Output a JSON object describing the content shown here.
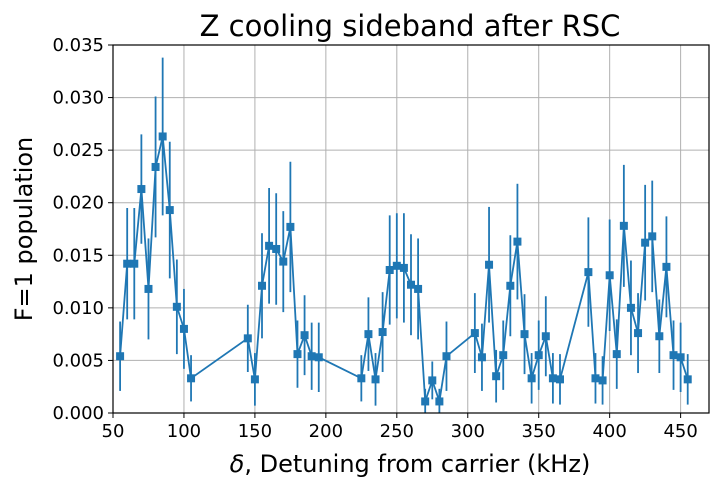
{
  "chart_data": {
    "type": "line",
    "title": "Z cooling sideband after RSC",
    "xlabel_symbol": "δ",
    "xlabel_text": ", Detuning from carrier (kHz)",
    "ylabel": "F=1 population",
    "xlim": [
      50,
      470
    ],
    "ylim": [
      0,
      0.035
    ],
    "xticks": [
      50,
      100,
      150,
      200,
      250,
      300,
      350,
      400,
      450
    ],
    "yticks": [
      0.0,
      0.005,
      0.01,
      0.015,
      0.02,
      0.025,
      0.03,
      0.035
    ],
    "ytick_labels": [
      "0.000",
      "0.005",
      "0.010",
      "0.015",
      "0.020",
      "0.025",
      "0.030",
      "0.035"
    ],
    "grid": true,
    "marker": "square",
    "color": "#1f77b4",
    "series": [
      {
        "x": [
          55,
          60,
          65,
          70,
          75,
          80,
          85,
          90,
          95,
          100,
          105,
          145,
          150,
          155,
          160,
          165,
          170,
          175,
          180,
          185,
          190,
          195,
          225,
          230,
          235,
          240,
          245,
          250,
          255,
          260,
          265,
          270,
          275,
          280,
          285,
          305,
          310,
          315,
          320,
          325,
          330,
          335,
          340,
          345,
          350,
          355,
          360,
          365,
          385,
          390,
          395,
          400,
          405,
          410,
          415,
          420,
          425,
          430,
          435,
          440,
          445,
          450,
          455
        ],
        "y": [
          0.0054,
          0.0142,
          0.0142,
          0.0213,
          0.0118,
          0.0234,
          0.0263,
          0.0193,
          0.0101,
          0.008,
          0.0033,
          0.0071,
          0.0032,
          0.0121,
          0.0159,
          0.0156,
          0.0144,
          0.0177,
          0.0056,
          0.0074,
          0.0054,
          0.0053,
          0.0033,
          0.0075,
          0.0032,
          0.0077,
          0.0136,
          0.014,
          0.0138,
          0.0122,
          0.0118,
          0.0011,
          0.0031,
          0.0011,
          0.0054,
          0.0076,
          0.0053,
          0.0141,
          0.0035,
          0.0055,
          0.0121,
          0.0163,
          0.0075,
          0.0033,
          0.0055,
          0.0073,
          0.0033,
          0.0032,
          0.0134,
          0.0033,
          0.0031,
          0.0131,
          0.0056,
          0.0178,
          0.01,
          0.0076,
          0.0162,
          0.0168,
          0.0073,
          0.0139,
          0.0055,
          0.0053,
          0.0032
        ],
        "yerr": [
          0.0033,
          0.0053,
          0.0053,
          0.0052,
          0.0048,
          0.0067,
          0.0075,
          0.0065,
          0.0045,
          0.0038,
          0.0022,
          0.0032,
          0.0025,
          0.005,
          0.0055,
          0.0053,
          0.0048,
          0.0062,
          0.0032,
          0.0038,
          0.0032,
          0.0033,
          0.0022,
          0.0035,
          0.0025,
          0.0038,
          0.0052,
          0.005,
          0.0052,
          0.0048,
          0.0048,
          0.0012,
          0.0018,
          0.0012,
          0.0033,
          0.0038,
          0.0032,
          0.0055,
          0.0025,
          0.0033,
          0.0048,
          0.0055,
          0.0038,
          0.0024,
          0.0033,
          0.0038,
          0.0024,
          0.0024,
          0.0052,
          0.0024,
          0.0023,
          0.0053,
          0.0033,
          0.0058,
          0.0045,
          0.0038,
          0.0055,
          0.0053,
          0.0035,
          0.0048,
          0.0033,
          0.0033,
          0.0024
        ]
      }
    ]
  }
}
